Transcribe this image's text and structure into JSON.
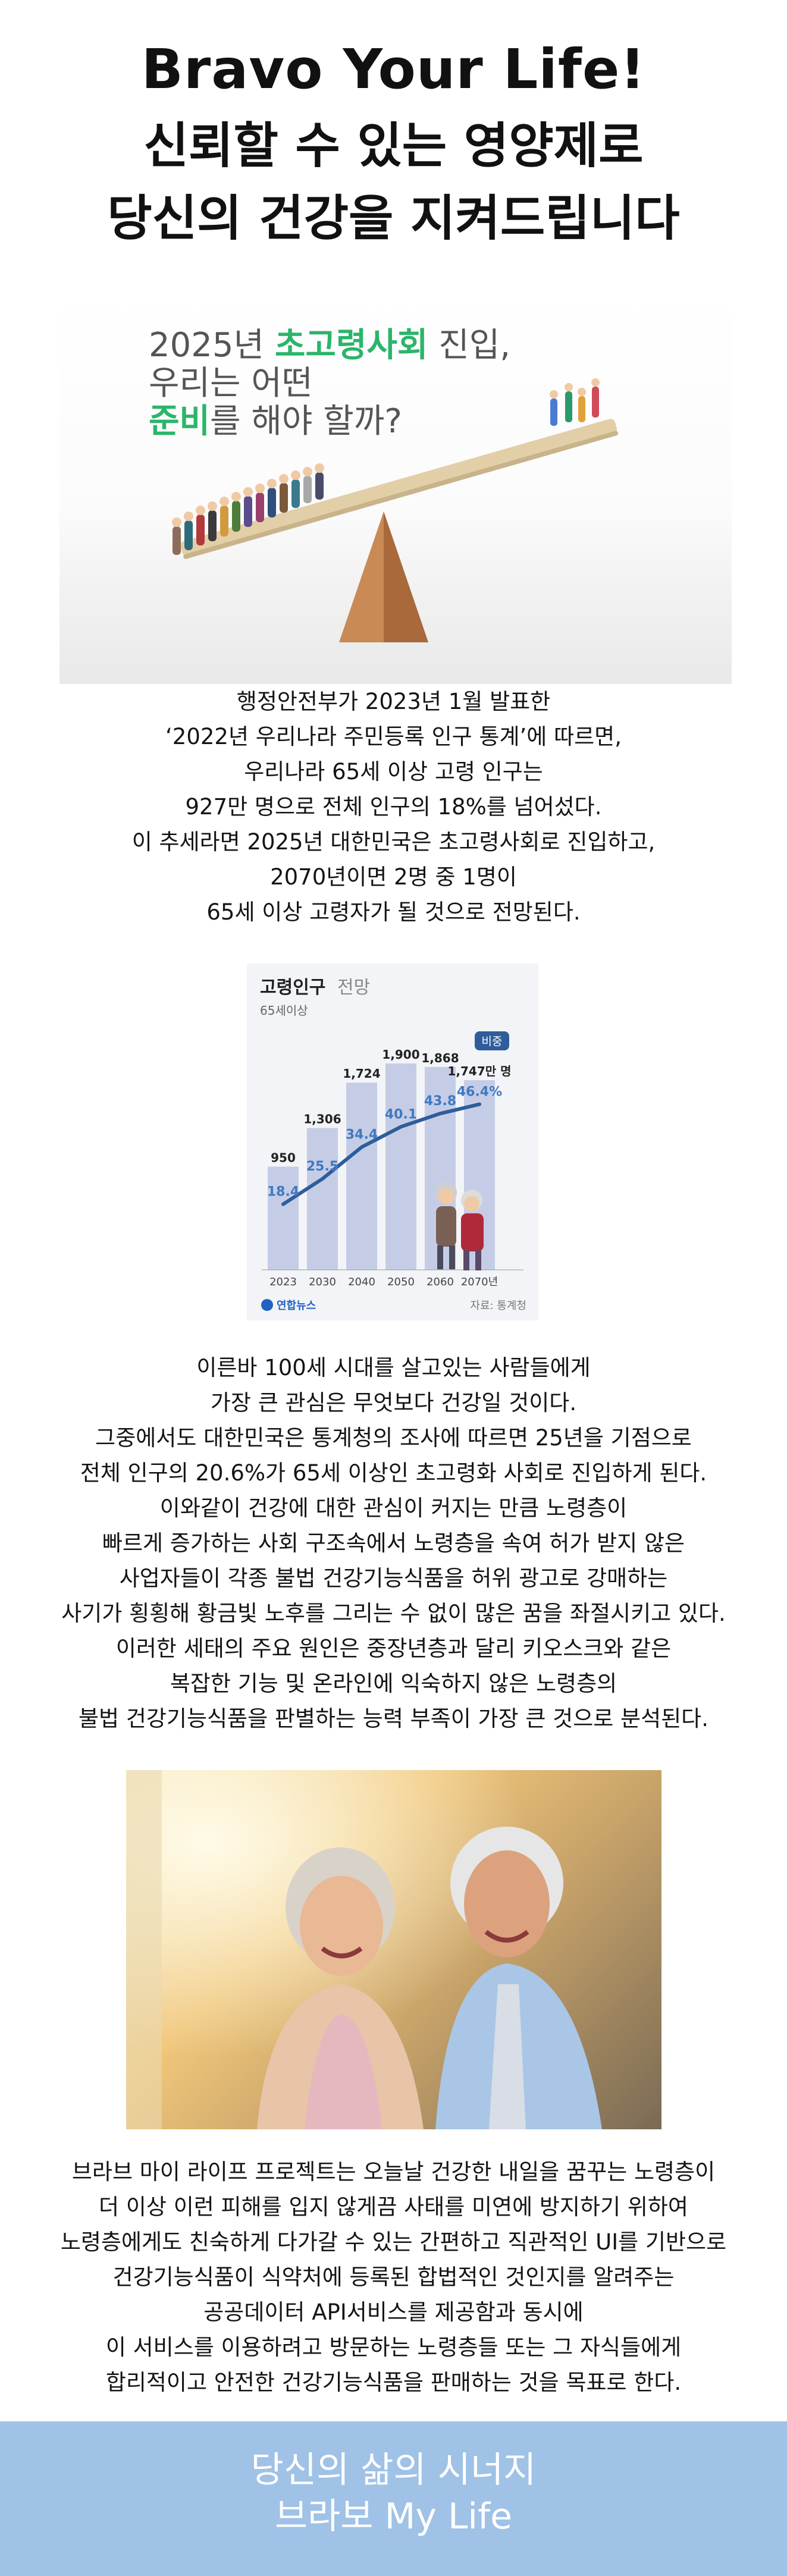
{
  "header": {
    "title": "Bravo Your Life!",
    "subtitle_line1": "신뢰할 수 있는 영양제로",
    "subtitle_line2": "당신의 건강을 지켜드립니다"
  },
  "seesaw_image": {
    "caption_line1_a": "2025년 ",
    "caption_line1_b": "초고령사회",
    "caption_line1_c": " 진입,",
    "caption_line2": "우리는 어떤",
    "caption_line3_a": "준비",
    "caption_line3_b": "를 해야 할까?",
    "accent_color": "#2bb56a"
  },
  "intro_paragraph": [
    "행정안전부가 2023년 1월 발표한",
    "‘2022년 우리나라 주민등록 인구 통계’에 따르면,",
    "우리나라 65세 이상 고령 인구는",
    "927만 명으로 전체 인구의 18%를 넘어섰다.",
    "이 추세라면 2025년 대한민국은 초고령사회로 진입하고,",
    "2070년이면 2명 중 1명이",
    "65세 이상 고령자가 될 것으로 전망된다."
  ],
  "chart_data": {
    "type": "bar",
    "title": "고령인구",
    "title_suffix": "전망",
    "subtitle": "65세이상",
    "categories": [
      "2023",
      "2030",
      "2040",
      "2050",
      "2060",
      "2070년"
    ],
    "series": [
      {
        "values": [
          950,
          1306,
          1724,
          1900,
          1868,
          1747
        ]
      },
      {
        "name": "비중",
        "values": [
          18.4,
          25.5,
          34.4,
          40.1,
          43.8,
          46.4
        ]
      }
    ],
    "bar_labels": [
      "950",
      "1,306",
      "1,724",
      "1,900",
      "1,868",
      "1,747"
    ],
    "bar_unit": "만 명",
    "line_labels": [
      "18.4",
      "25.5",
      "34.4",
      "40.1",
      "43.8",
      "46.4%"
    ],
    "ylim_bars": [
      0,
      2300
    ],
    "ylim_line": [
      0,
      70
    ],
    "source": "자료: 통계청",
    "logo_text": "연합뉴스",
    "bar_color": "#c5cde6",
    "line_color": "#2f5d9b"
  },
  "body_paragraph": [
    "이른바 100세 시대를 살고있는 사람들에게",
    "가장 큰 관심은 무엇보다 건강일 것이다.",
    "그중에서도 대한민국은 통계청의 조사에 따르면 25년을 기점으로",
    "전체 인구의 20.6%가 65세 이상인 초고령화 사회로 진입하게 된다.",
    "이와같이 건강에 대한 관심이 커지는 만큼 노령층이",
    "빠르게 증가하는 사회 구조속에서 노령층을 속여 허가 받지 않은",
    "사업자들이 각종 불법 건강기능식품을 허위 광고로 강매하는",
    "사기가 횡횡해 황금빛 노후를 그리는 수 없이 많은 꿈을 좌절시키고 있다.",
    "이러한 세태의 주요 원인은 중장년층과 달리 키오스크와 같은",
    "복잡한 기능 및 온라인에 익숙하지 않은 노령층의",
    "불법 건강기능식품을 판별하는 능력 부족이 가장 큰 것으로 분석된다."
  ],
  "project_paragraph": [
    "브라브 마이 라이프 프로젝트는 오늘날 건강한 내일을 꿈꾸는 노령층이",
    "더 이상 이런 피해를 입지 않게끔 사태를 미연에 방지하기 위하여",
    "노령층에게도 친숙하게 다가갈 수 있는 간편하고 직관적인 UI를 기반으로",
    "건강기능식품이 식약처에 등록된 합법적인 것인지를 알려주는",
    "공공데이터 API서비스를 제공함과 동시에",
    "이 서비스를 이용하려고 방문하는 노령층들 또는 그 자식들에게",
    "합리적이고 안전한 건강기능식품을 판매하는 것을 목표로 한다."
  ],
  "footer": {
    "line1": "당신의 삶의 시너지",
    "line2": "브라보 My Life",
    "background": "#9fc2e6"
  }
}
